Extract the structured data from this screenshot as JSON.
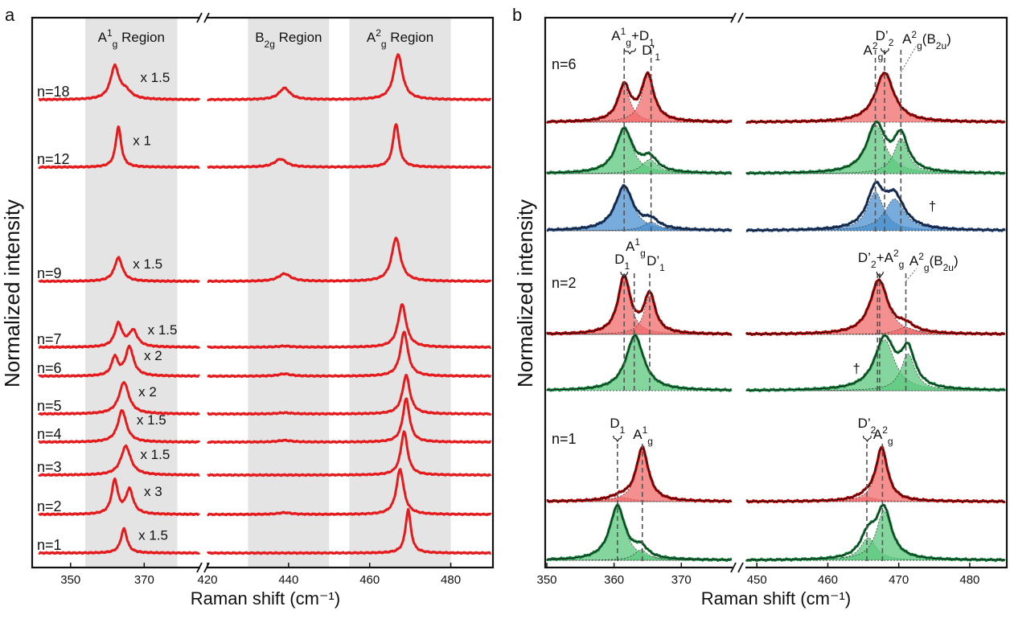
{
  "chart_data": [
    {
      "panel": "a",
      "type": "line",
      "xlabel": "Raman shift (cm⁻¹)",
      "ylabel": "Normalized intensity",
      "xlim_left": [
        340,
        385
      ],
      "xlim_right": [
        420,
        490
      ],
      "ticks": [
        {
          "v": 350,
          "label": "350"
        },
        {
          "v": 370,
          "label": "370"
        },
        {
          "v": 420,
          "label": "420"
        },
        {
          "v": 440,
          "label": "440"
        },
        {
          "v": 460,
          "label": "460"
        },
        {
          "v": 480,
          "label": "480"
        }
      ],
      "regions": [
        {
          "name": "A1g",
          "range": [
            354,
            379
          ],
          "label": "A",
          "sup": "1",
          "sub": "g",
          "rest": " Region"
        },
        {
          "name": "B2g",
          "range": [
            430,
            450
          ],
          "label": "B",
          "sup": "",
          "sub": "2g",
          "rest": " Region"
        },
        {
          "name": "A2g",
          "range": [
            455,
            480
          ],
          "label": "A",
          "sup": "2",
          "sub": "g",
          "rest": " Region"
        }
      ],
      "color": "#e41a1c",
      "series": [
        {
          "name": "n=18",
          "multiplier": "x 1.5",
          "peaks": [
            {
              "x": 362,
              "h": 0.56,
              "w": 1.4
            },
            {
              "x": 365,
              "h": 0.13,
              "w": 1.8
            },
            {
              "x": 439,
              "h": 0.2,
              "w": 1.6
            },
            {
              "x": 467,
              "h": 0.78,
              "w": 1.3
            }
          ]
        },
        {
          "name": "n=12",
          "multiplier": "x 1",
          "peaks": [
            {
              "x": 363,
              "h": 0.7,
              "w": 0.9
            },
            {
              "x": 438,
              "h": 0.14,
              "w": 1.8
            },
            {
              "x": 466.5,
              "h": 0.75,
              "w": 0.9
            }
          ]
        },
        {
          "name": "n=9",
          "multiplier": "x 1.5",
          "peaks": [
            {
              "x": 363,
              "h": 0.41,
              "w": 1.3
            },
            {
              "x": 439,
              "h": 0.13,
              "w": 1.8
            },
            {
              "x": 466.5,
              "h": 0.75,
              "w": 1.3
            }
          ]
        },
        {
          "name": "n=7",
          "multiplier": "x 1.5",
          "peaks": [
            {
              "x": 363,
              "h": 0.4,
              "w": 1.2
            },
            {
              "x": 367,
              "h": 0.28,
              "w": 1.4
            },
            {
              "x": 439,
              "h": 0.02,
              "w": 2
            },
            {
              "x": 468,
              "h": 0.74,
              "w": 1.2
            }
          ]
        },
        {
          "name": "n=6",
          "multiplier": "x 2",
          "peaks": [
            {
              "x": 362,
              "h": 0.32,
              "w": 1
            },
            {
              "x": 366,
              "h": 0.5,
              "w": 1.3
            },
            {
              "x": 439,
              "h": 0.04,
              "w": 1.8
            },
            {
              "x": 468.5,
              "h": 0.77,
              "w": 1.1
            }
          ]
        },
        {
          "name": "n=5",
          "multiplier": "x 2",
          "peaks": [
            {
              "x": 364.5,
              "h": 0.55,
              "w": 1.6
            },
            {
              "x": 439,
              "h": 0.02,
              "w": 2
            },
            {
              "x": 469,
              "h": 0.67,
              "w": 1.1
            }
          ]
        },
        {
          "name": "n=4",
          "multiplier": "x 1.5",
          "peaks": [
            {
              "x": 364,
              "h": 0.55,
              "w": 1.4
            },
            {
              "x": 439,
              "h": 0.03,
              "w": 2
            },
            {
              "x": 469,
              "h": 0.75,
              "w": 1
            }
          ]
        },
        {
          "name": "n=3",
          "multiplier": "x 1.5",
          "peaks": [
            {
              "x": 365,
              "h": 0.5,
              "w": 1.6
            },
            {
              "x": 468.5,
              "h": 0.75,
              "w": 1
            }
          ]
        },
        {
          "name": "n=2",
          "multiplier": "x 3",
          "peaks": [
            {
              "x": 362,
              "h": 0.58,
              "w": 1
            },
            {
              "x": 366,
              "h": 0.42,
              "w": 1.2
            },
            {
              "x": 439,
              "h": 0.03,
              "w": 2
            },
            {
              "x": 467.5,
              "h": 0.78,
              "w": 1.1
            }
          ]
        },
        {
          "name": "n=1",
          "multiplier": "x 1.5",
          "peaks": [
            {
              "x": 364.5,
              "h": 0.42,
              "w": 1
            },
            {
              "x": 469.5,
              "h": 0.75,
              "w": 0.8
            }
          ]
        }
      ]
    },
    {
      "panel": "b",
      "type": "line",
      "xlabel": "Raman shift (cm⁻¹)",
      "ylabel": "Normalized intensity",
      "xlim_left": [
        350,
        377.5
      ],
      "xlim_right": [
        448.5,
        485
      ],
      "ticks": [
        {
          "v": 350,
          "label": "350"
        },
        {
          "v": 360,
          "label": "360"
        },
        {
          "v": 370,
          "label": "370"
        },
        {
          "v": 450,
          "label": "450"
        },
        {
          "v": 460,
          "label": "460"
        },
        {
          "v": 470,
          "label": "470"
        },
        {
          "v": 480,
          "label": "480"
        }
      ],
      "dashed_lines": [
        {
          "group": "n=6",
          "x": [
            361.5,
            365.5,
            466.7,
            468.0,
            470.3
          ]
        },
        {
          "group": "n=2",
          "x": [
            361.5,
            363.0,
            365.3,
            467.0,
            467.3,
            471.0
          ]
        },
        {
          "group": "n=1",
          "x": [
            360.5,
            364.2,
            465.5,
            467.7
          ]
        }
      ],
      "colors": {
        "red_line": "#b30000",
        "red_fill": "#f26b6b",
        "green_line": "#12803a",
        "green_fill": "#5cc87e",
        "blue_line": "#1e3f73",
        "blue_fill": "#4a90d0"
      },
      "traces": [
        {
          "group": "n=6",
          "color": "red",
          "components": [
            {
              "x": 361.5,
              "h": 0.5,
              "w": 1.1
            },
            {
              "x": 365,
              "h": 0.65,
              "w": 1.1
            },
            {
              "x": 468,
              "h": 0.7,
              "w": 1.6
            }
          ]
        },
        {
          "group": "n=6",
          "color": "green",
          "components": [
            {
              "x": 361.5,
              "h": 0.62,
              "w": 1.5
            },
            {
              "x": 365.3,
              "h": 0.2,
              "w": 1.4
            },
            {
              "x": 466.8,
              "h": 0.68,
              "w": 1.6
            },
            {
              "x": 470.3,
              "h": 0.5,
              "w": 1.2
            }
          ]
        },
        {
          "group": "n=6",
          "color": "blue",
          "components": [
            {
              "x": 361.5,
              "h": 0.62,
              "w": 1.6
            },
            {
              "x": 365.5,
              "h": 0.12,
              "w": 1.4
            },
            {
              "x": 466.7,
              "h": 0.55,
              "w": 1.4
            },
            {
              "x": 469.4,
              "h": 0.45,
              "w": 1.7
            }
          ]
        },
        {
          "group": "n=2",
          "color": "red",
          "components": [
            {
              "x": 361.5,
              "h": 0.8,
              "w": 1.1
            },
            {
              "x": 365.3,
              "h": 0.55,
              "w": 1
            },
            {
              "x": 467.2,
              "h": 0.76,
              "w": 1.5
            },
            {
              "x": 471,
              "h": 0.1,
              "w": 1.5
            }
          ]
        },
        {
          "group": "n=2",
          "color": "green",
          "components": [
            {
              "x": 363.1,
              "h": 0.78,
              "w": 1.6
            },
            {
              "x": 468,
              "h": 0.72,
              "w": 1.7
            },
            {
              "x": 471.3,
              "h": 0.52,
              "w": 1.2
            }
          ]
        },
        {
          "group": "n=1",
          "color": "red",
          "components": [
            {
              "x": 361,
              "h": 0.06,
              "w": 2
            },
            {
              "x": 364.2,
              "h": 0.75,
              "w": 1.1
            },
            {
              "x": 465.5,
              "h": 0.06,
              "w": 1.8
            },
            {
              "x": 467.6,
              "h": 0.74,
              "w": 1
            }
          ]
        },
        {
          "group": "n=1",
          "color": "green",
          "components": [
            {
              "x": 360.5,
              "h": 0.76,
              "w": 1.4
            },
            {
              "x": 364,
              "h": 0.15,
              "w": 1.2
            },
            {
              "x": 465.7,
              "h": 0.32,
              "w": 1.3
            },
            {
              "x": 467.9,
              "h": 0.7,
              "w": 1.3
            }
          ]
        }
      ],
      "group_labels": [
        "n=6",
        "n=2",
        "n=1"
      ],
      "peak_labels": [
        {
          "text": "A",
          "sup": "1",
          "sub": "g",
          "rest": "+D",
          "sub2": "1"
        },
        {
          "text": "D’",
          "sub": "1"
        },
        {
          "text": "A",
          "sup": "2",
          "sub": "g"
        },
        {
          "text": "D’",
          "sub": "2"
        },
        {
          "text": "A",
          "sup": "2",
          "sub": "g",
          "rest": "(B",
          "sub2": "2u",
          "end": ")"
        },
        {
          "text": "D",
          "sub": "1"
        },
        {
          "text": "A",
          "sup": "1",
          "sub": "g"
        },
        {
          "text": "D’",
          "sub": "1"
        },
        {
          "text": "D’",
          "sub": "2",
          "rest": "+A",
          "sup2": "2",
          "sub2": "g"
        },
        {
          "text": "A",
          "sup": "2",
          "sub": "g",
          "rest": "(B",
          "sub2": "2u",
          "end": ")"
        },
        {
          "text": "D",
          "sub": "1"
        },
        {
          "text": "A",
          "sup": "1",
          "sub": "g"
        },
        {
          "text": "D’",
          "sub": "2"
        },
        {
          "text": "A",
          "sup": "2",
          "sub": "g"
        }
      ],
      "daggers": [
        "†",
        "†"
      ]
    }
  ]
}
